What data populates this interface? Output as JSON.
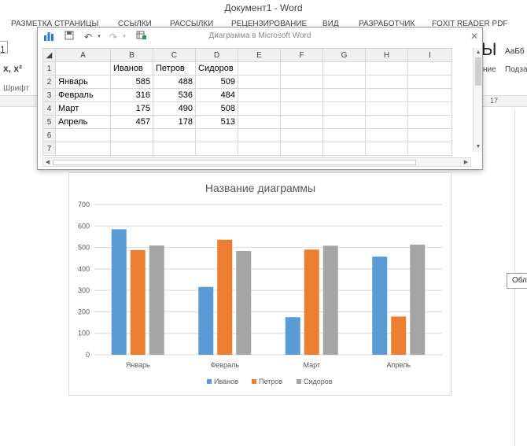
{
  "word": {
    "title": "Документ1 - Word",
    "tabs": [
      "РАЗМЕТКА СТРАНИЦЫ",
      "ССЫЛКИ",
      "РАССЫЛКИ",
      "РЕЦЕНЗИРОВАНИЕ",
      "ВИД",
      "РАЗРАБОТЧИК",
      "FOXIT READER PDF"
    ],
    "font_size_value": "1",
    "format_buttons": "x, x²",
    "font_group_label": "Шрифт",
    "style_preview_big": "Ы",
    "style_preview_small": "АаБб",
    "style_label_1": "ние",
    "style_label_2": "Подза",
    "ruler_number": "17",
    "tooltip_text": "Обл"
  },
  "excel": {
    "title": "Диаграмма в Microsoft Word",
    "icons": [
      "chart-icon",
      "save-icon",
      "undo-icon",
      "redo-icon",
      "edit-data-icon"
    ],
    "columns": [
      "A",
      "B",
      "C",
      "D",
      "E",
      "F",
      "G",
      "H",
      "I"
    ],
    "rows": [
      {
        "num": "1",
        "cells": [
          "",
          "Иванов",
          "Петров",
          "Сидоров",
          "",
          "",
          "",
          "",
          ""
        ]
      },
      {
        "num": "2",
        "cells": [
          "Январь",
          "585",
          "488",
          "509",
          "",
          "",
          "",
          "",
          ""
        ]
      },
      {
        "num": "3",
        "cells": [
          "Февраль",
          "316",
          "536",
          "484",
          "",
          "",
          "",
          "",
          ""
        ]
      },
      {
        "num": "4",
        "cells": [
          "Март",
          "175",
          "490",
          "508",
          "",
          "",
          "",
          "",
          ""
        ]
      },
      {
        "num": "5",
        "cells": [
          "Апрель",
          "457",
          "178",
          "513",
          "",
          "",
          "",
          "",
          ""
        ]
      },
      {
        "num": "6",
        "cells": [
          "",
          "",
          "",
          "",
          "",
          "",
          "",
          "",
          ""
        ]
      },
      {
        "num": "7",
        "cells": [
          "",
          "",
          "",
          "",
          "",
          "",
          "",
          "",
          ""
        ]
      }
    ]
  },
  "chart_data": {
    "type": "bar",
    "title": "Название диаграммы",
    "categories": [
      "Январь",
      "Февраль",
      "Март",
      "Апрель"
    ],
    "series": [
      {
        "name": "Иванов",
        "values": [
          585,
          316,
          175,
          457
        ],
        "color": "#5b9bd5"
      },
      {
        "name": "Петров",
        "values": [
          488,
          536,
          490,
          178
        ],
        "color": "#ed7d31"
      },
      {
        "name": "Сидоров",
        "values": [
          509,
          484,
          508,
          513
        ],
        "color": "#a5a5a5"
      }
    ],
    "ylim": [
      0,
      700
    ],
    "yticks": [
      "0",
      "100",
      "200",
      "300",
      "400",
      "500",
      "600",
      "700"
    ],
    "grid": true,
    "legend_position": "bottom"
  }
}
